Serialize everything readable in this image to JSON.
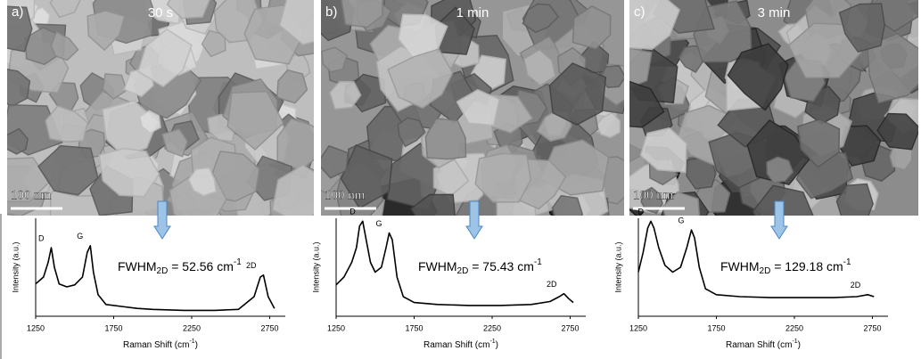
{
  "panels": [
    {
      "label": "a)",
      "time": "30 s",
      "scale_bar": "100 nm"
    },
    {
      "label": "b)",
      "time": "1 min",
      "scale_bar": "100 nm"
    },
    {
      "label": "c)",
      "time": "3 min",
      "scale_bar": "100 nm"
    }
  ],
  "chart_data": [
    {
      "type": "line",
      "y_label": "Intensity (a.u.)",
      "x_label": {
        "text": "Raman Shift (cm",
        "sup": "-1",
        "end": ")"
      },
      "annotation": {
        "text": "FWHM",
        "sub": "2D",
        "value": " = 52.56 cm",
        "sup": "-1"
      },
      "peak_labels": [
        {
          "text": "D",
          "x": 1350
        },
        {
          "text": "G",
          "x": 1600
        },
        {
          "text": "2D",
          "x": 2710
        }
      ],
      "x": [
        1250,
        1300,
        1330,
        1350,
        1370,
        1400,
        1450,
        1500,
        1550,
        1580,
        1600,
        1620,
        1650,
        1700,
        1800,
        1900,
        2000,
        2200,
        2400,
        2550,
        2650,
        2690,
        2710,
        2740,
        2780
      ],
      "values": [
        33,
        40,
        55,
        70,
        50,
        33,
        30,
        32,
        40,
        65,
        72,
        45,
        22,
        12,
        10,
        8,
        7,
        6,
        6,
        7,
        20,
        40,
        42,
        20,
        8
      ],
      "xlim": [
        1250,
        2850
      ],
      "xticks": [
        1250,
        1750,
        2250,
        2750
      ],
      "ylim": [
        0,
        100
      ],
      "color": "#000000"
    },
    {
      "type": "line",
      "y_label": "Intensity (a.u.)",
      "x_label": {
        "text": "Raman Shift (cm",
        "sup": "-1",
        "end": ")"
      },
      "annotation": {
        "text": "FWHM",
        "sub": "2D",
        "value": " = 75.43 cm",
        "sup": "-1"
      },
      "peak_labels": [
        {
          "text": "D",
          "x": 1420
        },
        {
          "text": "G",
          "x": 1590
        },
        {
          "text": "2D",
          "x": 2710
        }
      ],
      "x": [
        1250,
        1300,
        1350,
        1380,
        1400,
        1420,
        1440,
        1470,
        1500,
        1540,
        1570,
        1590,
        1610,
        1640,
        1680,
        1750,
        1900,
        2100,
        2300,
        2500,
        2620,
        2680,
        2710,
        2740,
        2770
      ],
      "values": [
        32,
        40,
        55,
        70,
        92,
        97,
        80,
        55,
        45,
        50,
        70,
        85,
        78,
        40,
        20,
        14,
        12,
        11,
        11,
        12,
        15,
        20,
        23,
        18,
        14
      ],
      "xlim": [
        1250,
        2850
      ],
      "xticks": [
        1250,
        1750,
        2250,
        2750
      ],
      "ylim": [
        0,
        100
      ],
      "color": "#000000"
    },
    {
      "type": "line",
      "y_label": "Intensity (a.u.)",
      "x_label": {
        "text": "Raman Shift (cm",
        "sup": "-1",
        "end": ")"
      },
      "annotation": {
        "text": "FWHM",
        "sub": "2D",
        "value": " = 129.18 cm",
        "sup": "-1"
      },
      "peak_labels": [
        {
          "text": "D",
          "x": 1330
        },
        {
          "text": "G",
          "x": 1590
        },
        {
          "text": "2D",
          "x": 2720
        }
      ],
      "x": [
        1250,
        1280,
        1310,
        1330,
        1350,
        1380,
        1420,
        1470,
        1520,
        1560,
        1590,
        1610,
        1640,
        1680,
        1750,
        1900,
        2100,
        2300,
        2500,
        2650,
        2720,
        2760
      ],
      "values": [
        45,
        65,
        90,
        97,
        90,
        70,
        52,
        45,
        50,
        70,
        88,
        80,
        50,
        28,
        22,
        20,
        19,
        19,
        19,
        20,
        22,
        20
      ],
      "xlim": [
        1250,
        2850
      ],
      "xticks": [
        1250,
        1750,
        2250,
        2750
      ],
      "ylim": [
        0,
        100
      ],
      "color": "#000000"
    }
  ]
}
